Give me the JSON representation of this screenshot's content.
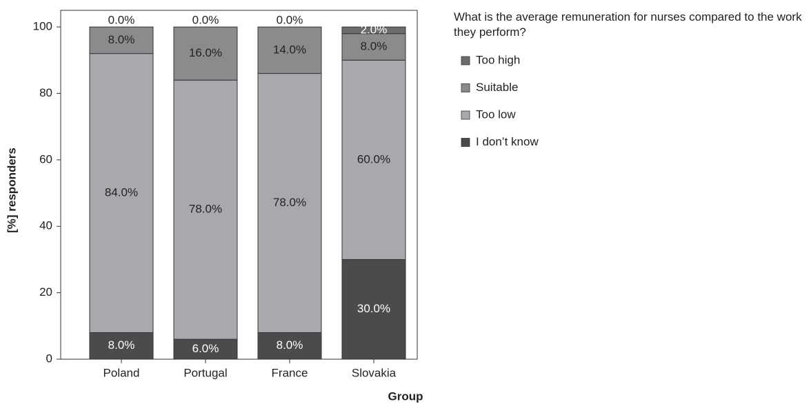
{
  "chart_data": {
    "type": "stacked_bar",
    "legend_title": "What is the average remuneration for nurses compared to the work they perform?",
    "xlabel": "Group",
    "ylabel": "[%] responders",
    "categories": [
      "Poland",
      "Portugal",
      "France",
      "Slovakia"
    ],
    "series": [
      {
        "name": "Too high",
        "color": "#6b6c6e",
        "values": [
          0,
          0,
          0,
          2
        ],
        "value_labels": [
          "0.0%",
          "0.0%",
          "0.0%",
          "2.0%"
        ]
      },
      {
        "name": "Suitable",
        "color": "#8a8b8d",
        "values": [
          8,
          16,
          14,
          8
        ],
        "value_labels": [
          "8.0%",
          "16.0%",
          "14.0%",
          "8.0%"
        ]
      },
      {
        "name": "Too low",
        "color": "#a8a9ac",
        "values": [
          84,
          78,
          78,
          60
        ],
        "value_labels": [
          "84.0%",
          "78.0%",
          "78.0%",
          "60.0%"
        ]
      },
      {
        "name": "I don’t know",
        "color": "#4a4b4d",
        "values": [
          8,
          6,
          8,
          30
        ],
        "value_labels": [
          "8.0%",
          "6.0%",
          "8.0%",
          "30.0%"
        ]
      }
    ],
    "ylim": [
      0,
      105
    ],
    "yticks": [
      0,
      20,
      40,
      60,
      80,
      100
    ],
    "legend": "right"
  }
}
